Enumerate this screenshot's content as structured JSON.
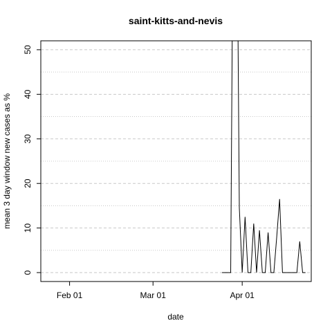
{
  "chart_data": {
    "type": "line",
    "title": "saint-kitts-and-nevis",
    "xlabel": "date",
    "ylabel": "mean  3  day window new cases as %",
    "x_ticks": [
      {
        "date": "2020-02-01",
        "label": "Feb 01"
      },
      {
        "date": "2020-03-01",
        "label": "Mar 01"
      },
      {
        "date": "2020-04-01",
        "label": "Apr 01"
      }
    ],
    "y_ticks": [
      0,
      10,
      20,
      30,
      40,
      50
    ],
    "xlim": [
      "2020-01-22",
      "2020-04-25"
    ],
    "ylim": [
      -2,
      52
    ],
    "grid": {
      "horizontal_major": true,
      "horizontal_minor": true,
      "vertical": false
    },
    "series": [
      {
        "x": [
          "2020-03-25",
          "2020-03-26",
          "2020-03-27",
          "2020-03-28",
          "2020-03-29",
          "2020-03-30",
          "2020-03-31",
          "2020-04-01",
          "2020-04-02",
          "2020-04-03",
          "2020-04-04",
          "2020-04-05",
          "2020-04-06",
          "2020-04-07",
          "2020-04-08",
          "2020-04-09",
          "2020-04-10",
          "2020-04-11",
          "2020-04-12",
          "2020-04-13",
          "2020-04-14",
          "2020-04-15",
          "2020-04-16",
          "2020-04-17",
          "2020-04-18",
          "2020-04-19",
          "2020-04-20",
          "2020-04-21",
          "2020-04-22",
          "2020-04-23"
        ],
        "y": [
          0,
          0,
          0,
          0,
          100,
          100,
          14.5,
          0,
          12.5,
          0,
          0,
          11,
          0,
          9.5,
          0,
          0,
          9,
          0,
          0,
          8,
          16.5,
          0,
          0,
          0,
          0,
          0,
          0,
          7,
          0,
          0
        ]
      }
    ]
  }
}
